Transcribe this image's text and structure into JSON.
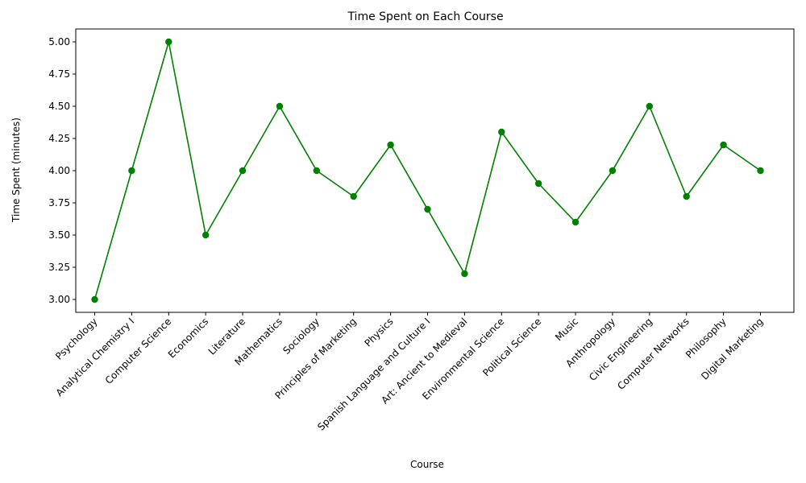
{
  "chart_data": {
    "type": "line",
    "title": "Time Spent on Each Course",
    "xlabel": "Course",
    "ylabel": "Time Spent (minutes)",
    "categories": [
      "Psychology",
      "Analytical Chemistry I",
      "Computer Science",
      "Economics",
      "Literature",
      "Mathematics",
      "Sociology",
      "Principles of Marketing",
      "Physics",
      "Spanish Language and Culture I",
      "Art: Ancient to Medieval",
      "Environmental Science",
      "Political Science",
      "Music",
      "Anthropology",
      "Civic Engineering",
      "Computer Networks",
      "Philosophy",
      "Digital Marketing"
    ],
    "series": [
      {
        "values": [
          3.0,
          4.0,
          5.0,
          3.5,
          4.0,
          4.5,
          4.0,
          3.8,
          4.2,
          3.7,
          3.2,
          4.3,
          3.9,
          3.6,
          4.0,
          4.5,
          3.8,
          4.2,
          4.0
        ],
        "color": "#008000",
        "marker": "circle"
      }
    ],
    "yticks": [
      "3.00",
      "3.25",
      "3.50",
      "3.75",
      "4.00",
      "4.25",
      "4.50",
      "4.75",
      "5.00"
    ],
    "ylim": [
      2.9,
      5.1
    ],
    "grid": false,
    "legend": false
  }
}
